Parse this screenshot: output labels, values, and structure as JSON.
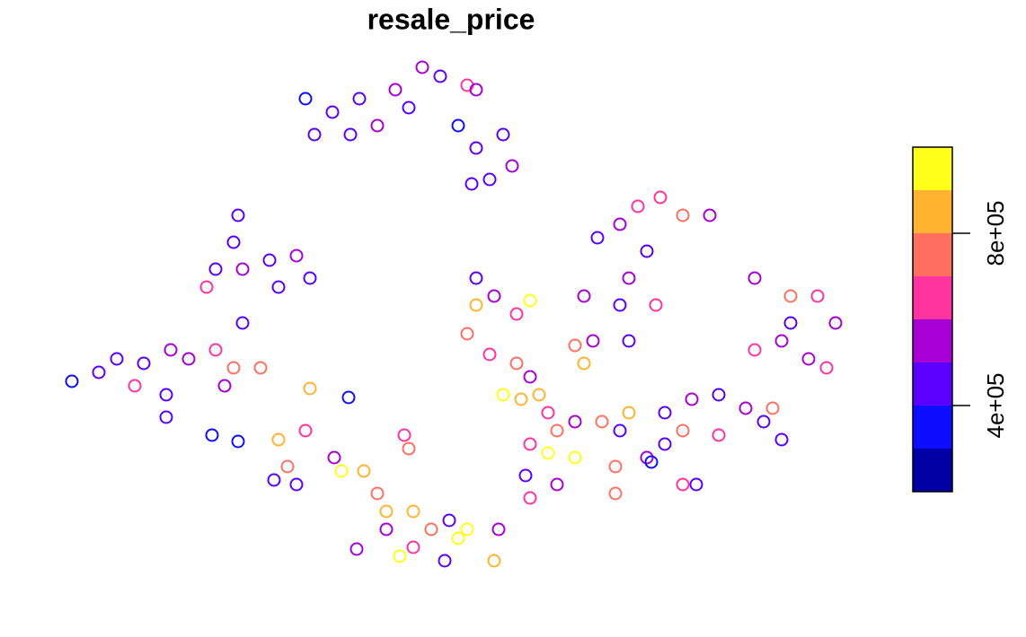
{
  "chart_data": {
    "type": "scatter",
    "title": "resale_price",
    "xlim": [
      0,
      1142
    ],
    "ylim": [
      705,
      0
    ],
    "legend": {
      "breaks": [
        200000,
        300000,
        400000,
        500000,
        600000,
        700000,
        800000,
        900000,
        1000000
      ],
      "colors": [
        "#0000A6",
        "#0D0DFF",
        "#5A00FF",
        "#A800D4",
        "#FF33A0",
        "#FF7060",
        "#FFB330",
        "#FFFF1A"
      ],
      "ticks": [
        {
          "value": 400000,
          "label": "4e+05"
        },
        {
          "value": 800000,
          "label": "8e+05"
        }
      ]
    },
    "x": [
      340,
      350,
      370,
      400,
      420,
      440,
      455,
      390,
      470,
      490,
      520,
      530,
      510,
      530,
      560,
      570,
      545,
      525,
      265,
      260,
      240,
      270,
      300,
      330,
      345,
      230,
      310,
      80,
      110,
      130,
      160,
      190,
      210,
      240,
      260,
      290,
      270,
      250,
      185,
      185,
      150,
      236,
      265,
      345,
      388,
      310,
      320,
      330,
      305,
      340,
      380,
      405,
      420,
      450,
      455,
      372,
      430,
      460,
      480,
      500,
      510,
      520,
      445,
      460,
      495,
      550,
      555,
      397,
      430,
      530,
      550,
      590,
      575,
      530,
      520,
      545,
      575,
      590,
      560,
      580,
      600,
      610,
      620,
      640,
      590,
      610,
      640,
      585,
      590,
      620,
      670,
      690,
      700,
      685,
      685,
      720,
      650,
      665,
      690,
      710,
      735,
      760,
      790,
      720,
      700,
      730,
      690,
      660,
      640,
      700,
      650,
      840,
      880,
      910,
      930,
      840,
      870,
      900,
      920,
      880,
      740,
      770,
      800,
      830,
      850,
      870,
      760,
      800,
      740,
      760,
      775,
      860,
      725
    ],
    "y": [
      110,
      150,
      125,
      110,
      140,
      100,
      120,
      150,
      75,
      85,
      95,
      100,
      140,
      165,
      150,
      185,
      200,
      205,
      240,
      270,
      300,
      300,
      290,
      285,
      310,
      320,
      320,
      425,
      415,
      400,
      405,
      390,
      400,
      390,
      410,
      410,
      360,
      430,
      440,
      465,
      430,
      485,
      492,
      433,
      443,
      490,
      520,
      540,
      535,
      480,
      525,
      525,
      550,
      485,
      500,
      510,
      570,
      570,
      590,
      580,
      600,
      590,
      620,
      610,
      625,
      625,
      590,
      612,
      590,
      310,
      330,
      335,
      350,
      340,
      372,
      395,
      405,
      420,
      440,
      445,
      440,
      460,
      480,
      470,
      495,
      505,
      510,
      530,
      555,
      540,
      470,
      480,
      460,
      520,
      550,
      510,
      330,
      265,
      250,
      230,
      220,
      240,
      240,
      280,
      310,
      340,
      340,
      380,
      385,
      380,
      405,
      310,
      330,
      330,
      360,
      390,
      380,
      400,
      410,
      360,
      460,
      445,
      440,
      455,
      470,
      490,
      480,
      485,
      495,
      540,
      540,
      455,
      515
    ],
    "values": [
      380000,
      420000,
      450000,
      480000,
      520000,
      560000,
      470000,
      430000,
      500000,
      450000,
      600000,
      530000,
      380000,
      420000,
      480000,
      520000,
      460000,
      400000,
      420000,
      460000,
      430000,
      520000,
      480000,
      560000,
      430000,
      600000,
      470000,
      380000,
      420000,
      450000,
      480000,
      560000,
      500000,
      650000,
      700000,
      720000,
      450000,
      520000,
      470000,
      430000,
      600000,
      380000,
      360000,
      800000,
      350000,
      850000,
      780000,
      480000,
      440000,
      680000,
      920000,
      820000,
      780000,
      640000,
      700000,
      500000,
      850000,
      880000,
      760000,
      420000,
      950000,
      900000,
      960000,
      680000,
      450000,
      820000,
      520000,
      520000,
      560000,
      450000,
      500000,
      980000,
      600000,
      860000,
      700000,
      650000,
      720000,
      560000,
      950000,
      880000,
      800000,
      620000,
      720000,
      560000,
      600000,
      980000,
      900000,
      480000,
      650000,
      500000,
      700000,
      460000,
      880000,
      700000,
      750000,
      500000,
      520000,
      480000,
      560000,
      620000,
      600000,
      700000,
      560000,
      480000,
      520000,
      650000,
      440000,
      500000,
      760000,
      430000,
      820000,
      540000,
      700000,
      600000,
      500000,
      680000,
      560000,
      520000,
      600000,
      480000,
      460000,
      500000,
      420000,
      560000,
      440000,
      460000,
      720000,
      620000,
      420000,
      640000,
      460000,
      700000,
      380000
    ]
  }
}
